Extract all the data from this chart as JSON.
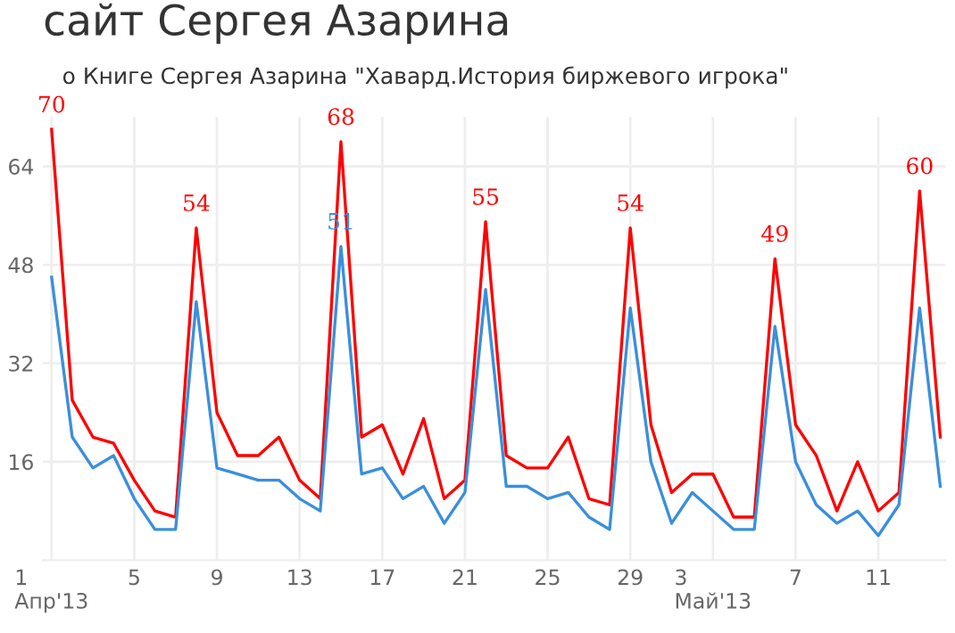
{
  "chart_data": {
    "type": "line",
    "title": "сайт Сергея Азарина",
    "subtitle": "о Книге Сергея Азарина \"Хавард.История биржевого игрока\"",
    "x": [
      "2013-04-01",
      "2013-04-02",
      "2013-04-03",
      "2013-04-04",
      "2013-04-05",
      "2013-04-06",
      "2013-04-07",
      "2013-04-08",
      "2013-04-09",
      "2013-04-10",
      "2013-04-11",
      "2013-04-12",
      "2013-04-13",
      "2013-04-14",
      "2013-04-15",
      "2013-04-16",
      "2013-04-17",
      "2013-04-18",
      "2013-04-19",
      "2013-04-20",
      "2013-04-21",
      "2013-04-22",
      "2013-04-23",
      "2013-04-24",
      "2013-04-25",
      "2013-04-26",
      "2013-04-27",
      "2013-04-28",
      "2013-04-29",
      "2013-04-30",
      "2013-05-01",
      "2013-05-02",
      "2013-05-03",
      "2013-05-04",
      "2013-05-05",
      "2013-05-06",
      "2013-05-07",
      "2013-05-08",
      "2013-05-09",
      "2013-05-10",
      "2013-05-11",
      "2013-05-12",
      "2013-05-13",
      "2013-05-14"
    ],
    "series": [
      {
        "color": "#ff0000",
        "values": [
          70,
          26,
          20,
          19,
          13,
          8,
          7,
          54,
          24,
          17,
          17,
          20,
          13,
          10,
          68,
          20,
          22,
          14,
          23,
          10,
          13,
          55,
          17,
          15,
          15,
          20,
          10,
          9,
          54,
          22,
          11,
          14,
          14,
          7,
          7,
          49,
          22,
          17,
          8,
          16,
          8,
          11,
          60,
          20
        ],
        "value_labels": [
          "70",
          null,
          null,
          null,
          null,
          null,
          null,
          "54",
          null,
          null,
          null,
          null,
          null,
          null,
          "68",
          null,
          null,
          null,
          null,
          null,
          null,
          "55",
          null,
          null,
          null,
          null,
          null,
          null,
          "54",
          null,
          null,
          null,
          null,
          null,
          null,
          "49",
          null,
          null,
          null,
          null,
          null,
          null,
          "60",
          null
        ]
      },
      {
        "color": "#3a8fdc",
        "values": [
          46,
          20,
          15,
          17,
          10,
          5,
          5,
          42,
          15,
          14,
          13,
          13,
          10,
          8,
          51,
          14,
          15,
          10,
          12,
          6,
          11,
          44,
          12,
          12,
          10,
          11,
          7,
          5,
          41,
          16,
          6,
          11,
          8,
          5,
          5,
          38,
          16,
          9,
          6,
          8,
          4,
          9,
          41,
          12
        ],
        "value_labels": [
          null,
          null,
          null,
          null,
          null,
          null,
          null,
          null,
          null,
          null,
          null,
          null,
          null,
          null,
          "51",
          null,
          null,
          null,
          null,
          null,
          null,
          null,
          null,
          null,
          null,
          null,
          null,
          null,
          null,
          null,
          null,
          null,
          null,
          null,
          null,
          null,
          null,
          null,
          null,
          null,
          null,
          null,
          null,
          null
        ]
      }
    ],
    "xlim": [
      "2013-03-31T14:00",
      "2013-05-14T06:00"
    ],
    "xticks": [
      {
        "value": "2013-04-01",
        "label": "1\nАпр'13"
      },
      {
        "value": "2013-04-05",
        "label": "5"
      },
      {
        "value": "2013-04-09",
        "label": "9"
      },
      {
        "value": "2013-04-13",
        "label": "13"
      },
      {
        "value": "2013-04-17",
        "label": "17"
      },
      {
        "value": "2013-04-21",
        "label": "21"
      },
      {
        "value": "2013-04-25",
        "label": "25"
      },
      {
        "value": "2013-04-29",
        "label": "29"
      },
      {
        "value": "2013-05-03",
        "label": "3\nМай'13"
      },
      {
        "value": "2013-05-07",
        "label": "7"
      },
      {
        "value": "2013-05-11",
        "label": "11"
      }
    ],
    "ylim": [
      0,
      72
    ],
    "yticks": [
      16,
      32,
      48,
      64
    ],
    "grid": true,
    "marker": "none",
    "line_style": "solid",
    "legend": false
  }
}
